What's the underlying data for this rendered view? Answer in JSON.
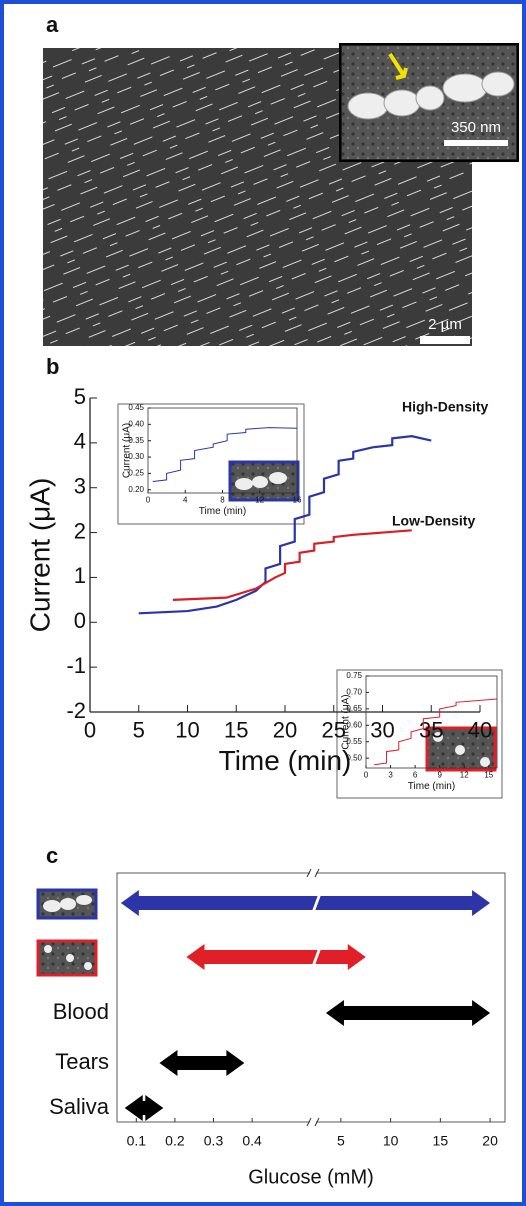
{
  "panel_a": {
    "label": "a",
    "inset_scale": "350 nm",
    "scale": "2 µm"
  },
  "chart_data": [
    {
      "type": "line",
      "panel_label": "b",
      "xlabel": "Time (min)",
      "ylabel": "Current (μA)",
      "xlim": [
        0,
        40
      ],
      "ylim": [
        -2,
        5
      ],
      "xticks": [
        0,
        5,
        10,
        15,
        20,
        25,
        30,
        35,
        40
      ],
      "yticks": [
        -2,
        -1,
        0,
        1,
        2,
        3,
        4,
        5
      ],
      "series": [
        {
          "name": "High-Density",
          "color": "#2b35a8",
          "x": [
            5,
            10,
            13,
            15,
            17,
            18,
            18,
            19.5,
            19.5,
            21,
            21,
            22.5,
            22.5,
            24,
            24,
            25.5,
            25.5,
            27,
            27,
            29,
            31,
            31,
            33,
            35
          ],
          "values": [
            0.2,
            0.25,
            0.35,
            0.5,
            0.7,
            0.9,
            1.2,
            1.3,
            1.7,
            1.8,
            2.3,
            2.4,
            2.8,
            2.9,
            3.2,
            3.3,
            3.6,
            3.65,
            3.8,
            3.9,
            3.95,
            4.1,
            4.15,
            4.05
          ]
        },
        {
          "name": "Low-Density",
          "color": "#d91f26",
          "x": [
            8.5,
            14,
            17,
            19,
            20,
            20,
            21.5,
            21.5,
            23,
            23,
            25,
            25,
            27,
            30,
            33
          ],
          "values": [
            0.5,
            0.55,
            0.75,
            1.0,
            1.1,
            1.3,
            1.35,
            1.55,
            1.6,
            1.75,
            1.8,
            1.9,
            1.95,
            2.0,
            2.05
          ]
        }
      ]
    },
    {
      "type": "line",
      "xlabel": "Time (min)",
      "ylabel": "Current (μA)",
      "xlim": [
        0,
        16
      ],
      "ylim": [
        0.19,
        0.45
      ],
      "xticks": [
        0,
        4,
        8,
        12,
        16
      ],
      "yticks": [
        {
          "value": 0.2,
          "label": "0.20"
        },
        0.25,
        {
          "value": 0.3,
          "label": "0.30"
        },
        0.35,
        {
          "value": 0.4,
          "label": "0.40"
        },
        0.45
      ],
      "series": [
        {
          "color": "#2b35a8",
          "x": [
            0.5,
            2,
            2,
            3.5,
            3.5,
            5,
            5,
            7,
            7,
            8.5,
            8.5,
            10.5,
            10.5,
            13,
            16
          ],
          "values": [
            0.225,
            0.23,
            0.25,
            0.26,
            0.29,
            0.295,
            0.32,
            0.33,
            0.34,
            0.35,
            0.37,
            0.375,
            0.385,
            0.39,
            0.388
          ]
        }
      ]
    },
    {
      "type": "line",
      "xlabel": "Time (min)",
      "ylabel": "Current (μA)",
      "xlim": [
        0,
        16
      ],
      "ylim": [
        0.47,
        0.75
      ],
      "xticks": [
        0,
        3,
        6,
        9,
        12,
        15
      ],
      "yticks": [
        {
          "value": 0.5,
          "label": "0.50"
        },
        0.55,
        {
          "value": 0.6,
          "label": "0.60"
        },
        0.65,
        {
          "value": 0.7,
          "label": "0.70"
        },
        0.75
      ],
      "series": [
        {
          "color": "#d91f26",
          "x": [
            1,
            2.5,
            2.5,
            4,
            4,
            5.5,
            5.5,
            7,
            7,
            9,
            9,
            11,
            11,
            16
          ],
          "values": [
            0.48,
            0.485,
            0.52,
            0.525,
            0.55,
            0.56,
            0.58,
            0.59,
            0.62,
            0.625,
            0.65,
            0.66,
            0.67,
            0.68
          ]
        }
      ]
    },
    {
      "type": "range",
      "panel_label": "c",
      "xlabel": "Glucose (mM)",
      "xlim": [
        [
          0.05,
          0.55
        ],
        [
          2.5,
          21.5
        ]
      ],
      "xticks": [
        0.1,
        0.2,
        0.3,
        0.4,
        5,
        10,
        15,
        20
      ],
      "categories": [
        null,
        null,
        "Blood",
        "Tears",
        "Saliva"
      ],
      "colors": [
        "#2b35a8",
        "#e11f27",
        "#000000",
        "#000000",
        "#000000"
      ],
      "values": [
        [
          0.06,
          20
        ],
        [
          0.23,
          7.5
        ],
        [
          3.5,
          20
        ],
        [
          0.16,
          0.38
        ],
        [
          0.07,
          0.17
        ]
      ]
    }
  ]
}
